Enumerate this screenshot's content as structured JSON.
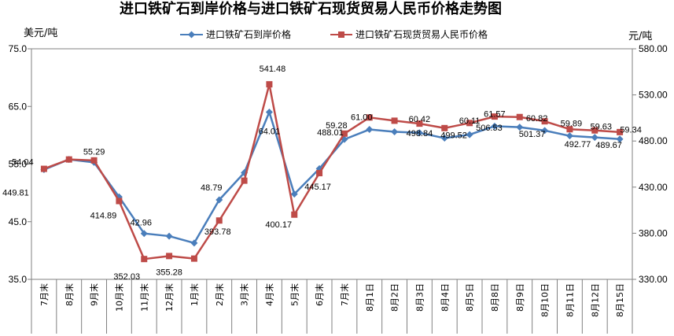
{
  "chart_data": {
    "type": "line",
    "title": "进口铁矿石到岸价格与进口铁矿石现货贸易人民币价格走势图",
    "ylabel_left": "美元/吨",
    "ylabel_right": "元/吨",
    "ylim_left": [
      35,
      75
    ],
    "ylim_right": [
      330,
      580
    ],
    "yticks_left": [
      "35.0",
      "45.0",
      "55.0",
      "65.0",
      "75.0"
    ],
    "yticks_right": [
      "330.00",
      "380.00",
      "430.00",
      "480.00",
      "530.00",
      "580.00"
    ],
    "grid": "horizontal-none",
    "legend_position": "top-center",
    "categories": [
      "7月末",
      "8月末",
      "9月末",
      "10月末",
      "11月末",
      "12月末",
      "1月末",
      "2月末",
      "3月末",
      "4月末",
      "5月末",
      "6月末",
      "7月末",
      "8月1日",
      "8月2日",
      "8月3日",
      "8月4日",
      "8月5日",
      "8月8日",
      "8月9日",
      "8月10日",
      "8月11日",
      "8月12日",
      "8月15日"
    ],
    "series": [
      {
        "name": "进口铁矿石到岸价格",
        "axis": "left",
        "color": "#4a7ebb",
        "marker": "diamond",
        "values": [
          54.04,
          55.8,
          55.29,
          49.3,
          42.96,
          42.5,
          41.3,
          48.79,
          53.5,
          64.01,
          49.8,
          54.2,
          59.28,
          61.0,
          60.6,
          60.42,
          59.5,
          60.11,
          61.57,
          61.4,
          60.82,
          59.89,
          59.63,
          59.34
        ],
        "labels": [
          "54.04",
          "",
          "55.29",
          "",
          "42.96",
          "",
          "",
          "48.79",
          "",
          "64.01",
          "",
          "",
          "59.28",
          "61.00",
          "",
          "60.42",
          "",
          "60.11",
          "61.57",
          "",
          "60.82",
          "59.89",
          "59.63",
          "59.34"
        ]
      },
      {
        "name": "进口铁矿石现货贸易人民币价格",
        "axis": "right",
        "color": "#be4b48",
        "marker": "square",
        "values": [
          449.81,
          460.0,
          459.0,
          414.89,
          352.03,
          355.28,
          352.5,
          393.78,
          437.0,
          541.48,
          400.17,
          445.17,
          488.01,
          505.5,
          502.0,
          498.84,
          494.0,
          499.52,
          506.53,
          506.0,
          501.37,
          492.77,
          491.5,
          489.67
        ],
        "labels": [
          "449.81",
          "",
          "",
          "414.89",
          "352.03",
          "355.28",
          "",
          "393.78",
          "",
          "541.48",
          "400.17",
          "445.17",
          "488.01",
          "",
          "",
          "498.84",
          "",
          "499.52",
          "506.53",
          "",
          "501.37",
          "492.77",
          "",
          "489.67"
        ]
      }
    ]
  }
}
